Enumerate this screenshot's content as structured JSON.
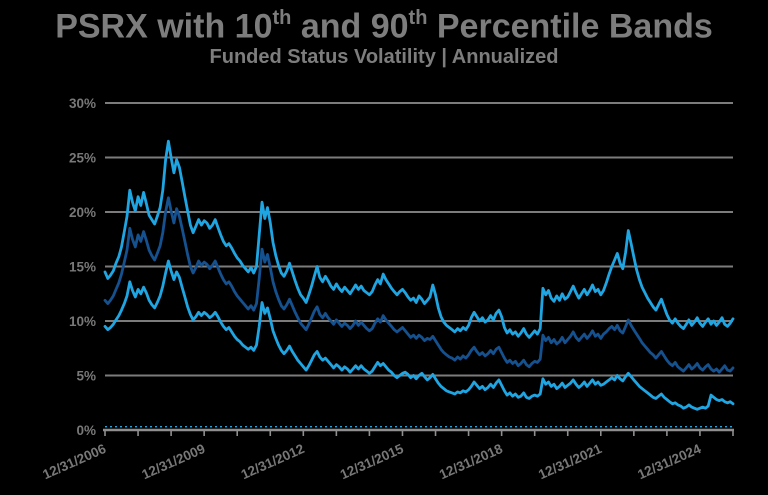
{
  "header": {
    "title_parts": {
      "p1": "PSRX with 10",
      "s1": "th",
      "p2": " and 90",
      "s2": "th",
      "p3": " Percentile Bands"
    },
    "subtitle": "Funded Status Volatility | Annualized"
  },
  "colors": {
    "background": "#000000",
    "band_line": "#1FA5E2",
    "psrx_line": "#15518F",
    "grid": "#7c7c7c",
    "axis": "#8f8f8f",
    "tick_label": "#787878",
    "title_text": "#7d7d7d"
  },
  "chart_data": {
    "type": "line",
    "title": "PSRX with 10th and 90th Percentile Bands",
    "subtitle": "Funded Status Volatility | Annualized",
    "x_start": "12/31/2006",
    "x_end": "12/31/2025",
    "x_frequency": "monthly",
    "x_tick_labels": [
      "12/31/2006",
      "12/31/2009",
      "12/31/2012",
      "12/31/2015",
      "12/31/2018",
      "12/31/2021",
      "12/31/2024"
    ],
    "x_minor_tick_every_months": 12,
    "x_label_every_months": 36,
    "ylim": [
      0,
      30
    ],
    "y_ticks_pct": [
      0,
      5,
      10,
      15,
      20,
      25,
      30
    ],
    "y_tick_suffix": "%",
    "grid": "horizontal",
    "legend": "none",
    "zero_reference_line": {
      "value_pct": 0.3,
      "style": "dashed"
    },
    "series": [
      {
        "name": "90th Percentile",
        "color": "#1FA5E2",
        "values": [
          14.5,
          13.9,
          14.2,
          14.6,
          15.3,
          15.9,
          16.8,
          18.2,
          19.6,
          22.0,
          20.9,
          20.1,
          21.4,
          20.6,
          21.8,
          20.8,
          19.7,
          19.3,
          18.9,
          19.6,
          20.4,
          22.0,
          24.8,
          26.5,
          25.0,
          23.6,
          24.8,
          24.1,
          22.8,
          21.4,
          20.1,
          18.8,
          18.1,
          18.7,
          19.3,
          18.8,
          19.2,
          19.0,
          18.5,
          18.8,
          19.3,
          18.6,
          17.9,
          17.3,
          16.9,
          17.1,
          16.7,
          16.2,
          15.8,
          15.5,
          15.1,
          14.8,
          14.5,
          14.9,
          14.4,
          15.0,
          17.9,
          20.9,
          19.4,
          20.4,
          19.0,
          17.2,
          16.0,
          15.1,
          14.4,
          14.1,
          14.6,
          15.3,
          14.5,
          13.7,
          13.0,
          12.4,
          12.1,
          11.7,
          12.4,
          13.2,
          14.1,
          15.0,
          14.0,
          13.6,
          14.1,
          13.7,
          13.2,
          12.9,
          13.4,
          13.0,
          12.7,
          13.1,
          12.8,
          12.5,
          12.9,
          13.3,
          12.9,
          13.2,
          12.8,
          12.6,
          12.4,
          12.7,
          13.3,
          13.8,
          13.4,
          14.3,
          13.8,
          13.4,
          13.0,
          12.7,
          12.4,
          12.7,
          12.9,
          12.6,
          12.2,
          11.9,
          12.1,
          11.7,
          12.3,
          12.0,
          11.6,
          11.9,
          12.2,
          13.3,
          12.4,
          11.2,
          10.4,
          9.9,
          9.6,
          9.4,
          9.2,
          9.0,
          9.3,
          9.1,
          9.4,
          9.2,
          9.6,
          10.3,
          10.8,
          10.4,
          10.0,
          10.3,
          9.9,
          10.1,
          10.5,
          10.1,
          10.7,
          11.0,
          10.4,
          9.4,
          8.9,
          9.2,
          8.8,
          9.0,
          8.6,
          8.9,
          9.3,
          8.8,
          8.5,
          8.8,
          9.1,
          8.8,
          9.3,
          13.0,
          12.4,
          12.8,
          12.1,
          11.8,
          12.3,
          11.9,
          12.5,
          12.0,
          12.2,
          12.7,
          13.2,
          12.6,
          12.1,
          12.5,
          12.9,
          12.4,
          12.8,
          13.3,
          12.7,
          12.9,
          12.4,
          12.8,
          13.5,
          14.3,
          15.0,
          15.6,
          16.2,
          15.3,
          14.8,
          16.3,
          18.3,
          17.1,
          15.9,
          14.7,
          13.8,
          13.1,
          12.6,
          12.1,
          11.7,
          11.3,
          11.0,
          11.5,
          12.0,
          11.3,
          10.6,
          10.1,
          9.8,
          10.2,
          9.8,
          9.5,
          9.3,
          9.7,
          10.1,
          9.6,
          9.9,
          10.3,
          9.8,
          9.5,
          9.9,
          10.2,
          9.7,
          10.0,
          9.6,
          9.9,
          10.3,
          9.7,
          9.5,
          9.8,
          10.2
        ]
      },
      {
        "name": "10th Percentile",
        "color": "#1FA5E2",
        "values": [
          9.5,
          9.2,
          9.4,
          9.7,
          10.1,
          10.5,
          11.0,
          11.6,
          12.3,
          13.6,
          12.8,
          12.2,
          12.9,
          12.5,
          13.1,
          12.6,
          11.9,
          11.5,
          11.2,
          11.7,
          12.3,
          13.2,
          14.4,
          15.5,
          14.6,
          13.8,
          14.5,
          14.0,
          13.1,
          12.2,
          11.3,
          10.6,
          10.1,
          10.4,
          10.8,
          10.5,
          10.8,
          10.6,
          10.3,
          10.5,
          10.8,
          10.4,
          9.9,
          9.5,
          9.2,
          9.4,
          9.0,
          8.6,
          8.3,
          8.1,
          7.8,
          7.6,
          7.4,
          7.6,
          7.3,
          7.8,
          9.5,
          11.7,
          10.7,
          11.2,
          10.2,
          9.1,
          8.4,
          7.8,
          7.3,
          7.0,
          7.3,
          7.7,
          7.2,
          6.8,
          6.4,
          6.1,
          5.8,
          5.5,
          5.9,
          6.4,
          6.9,
          7.2,
          6.7,
          6.4,
          6.6,
          6.3,
          6.0,
          5.7,
          6.0,
          5.8,
          5.5,
          5.8,
          5.6,
          5.3,
          5.6,
          5.9,
          5.6,
          5.9,
          5.6,
          5.4,
          5.2,
          5.4,
          5.8,
          6.2,
          5.9,
          6.1,
          5.8,
          5.5,
          5.3,
          5.0,
          4.8,
          5.0,
          5.2,
          5.3,
          5.1,
          4.8,
          5.0,
          4.7,
          5.0,
          5.2,
          4.9,
          4.6,
          4.8,
          5.1,
          4.7,
          4.3,
          4.0,
          3.8,
          3.6,
          3.5,
          3.4,
          3.3,
          3.5,
          3.4,
          3.6,
          3.5,
          3.7,
          4.0,
          4.4,
          4.1,
          3.8,
          4.0,
          3.7,
          3.9,
          4.2,
          3.9,
          4.3,
          4.6,
          4.1,
          3.6,
          3.2,
          3.4,
          3.1,
          3.3,
          3.0,
          3.1,
          3.4,
          3.0,
          2.9,
          3.1,
          3.2,
          3.1,
          3.3,
          4.7,
          4.2,
          4.4,
          4.0,
          4.2,
          3.8,
          4.0,
          4.3,
          3.9,
          4.1,
          4.3,
          4.6,
          4.2,
          3.9,
          4.1,
          4.4,
          4.0,
          4.3,
          4.6,
          4.2,
          4.4,
          4.1,
          4.2,
          4.4,
          4.6,
          4.8,
          4.6,
          5.0,
          4.7,
          4.5,
          4.9,
          5.2,
          4.9,
          4.6,
          4.3,
          4.0,
          3.8,
          3.6,
          3.4,
          3.2,
          3.0,
          2.9,
          3.1,
          3.3,
          3.0,
          2.8,
          2.6,
          2.4,
          2.5,
          2.3,
          2.2,
          2.0,
          2.1,
          2.3,
          2.1,
          2.0,
          1.9,
          2.0,
          2.1,
          2.0,
          2.2,
          3.2,
          3.0,
          2.8,
          2.7,
          2.8,
          2.6,
          2.5,
          2.6,
          2.4
        ]
      },
      {
        "name": "PSRX",
        "color": "#15518F",
        "values": [
          11.9,
          11.6,
          11.9,
          12.3,
          12.9,
          13.5,
          14.3,
          15.4,
          16.5,
          18.5,
          17.5,
          16.8,
          17.9,
          17.3,
          18.2,
          17.4,
          16.5,
          16.0,
          15.6,
          16.2,
          16.9,
          18.1,
          20.0,
          21.3,
          20.1,
          19.0,
          20.3,
          19.6,
          18.5,
          17.3,
          16.1,
          15.0,
          14.4,
          14.9,
          15.5,
          15.1,
          15.4,
          15.2,
          14.8,
          15.1,
          15.5,
          14.9,
          14.3,
          13.8,
          13.4,
          13.6,
          13.2,
          12.7,
          12.3,
          12.0,
          11.7,
          11.4,
          11.1,
          11.4,
          11.0,
          11.6,
          13.9,
          16.6,
          15.4,
          16.1,
          14.9,
          13.6,
          12.7,
          12.0,
          11.4,
          11.1,
          11.5,
          12.0,
          11.4,
          10.8,
          10.3,
          9.8,
          9.5,
          9.2,
          9.7,
          10.3,
          10.9,
          11.3,
          10.6,
          10.3,
          10.7,
          10.3,
          10.0,
          9.7,
          10.1,
          9.8,
          9.5,
          9.8,
          9.6,
          9.3,
          9.6,
          10.0,
          9.6,
          9.9,
          9.6,
          9.3,
          9.1,
          9.3,
          9.8,
          10.2,
          9.9,
          10.5,
          10.1,
          9.8,
          9.5,
          9.2,
          9.0,
          9.2,
          9.4,
          9.1,
          8.8,
          8.5,
          8.7,
          8.4,
          8.7,
          8.5,
          8.2,
          8.4,
          8.3,
          8.6,
          8.2,
          7.8,
          7.4,
          7.1,
          6.9,
          6.7,
          6.6,
          6.4,
          6.7,
          6.5,
          6.8,
          6.6,
          6.9,
          7.3,
          7.6,
          7.2,
          6.9,
          7.1,
          6.8,
          7.0,
          7.3,
          7.0,
          7.4,
          7.6,
          7.1,
          6.6,
          6.2,
          6.4,
          6.1,
          6.3,
          5.9,
          6.1,
          6.4,
          6.0,
          5.8,
          6.1,
          6.3,
          6.2,
          6.5,
          8.7,
          8.2,
          8.5,
          8.0,
          8.3,
          7.9,
          8.1,
          8.5,
          8.0,
          8.3,
          8.6,
          9.0,
          8.5,
          8.2,
          8.5,
          8.8,
          8.4,
          8.7,
          9.1,
          8.6,
          8.8,
          8.4,
          8.8,
          9.0,
          9.3,
          9.5,
          9.2,
          9.6,
          9.1,
          8.9,
          9.5,
          10.1,
          9.6,
          9.2,
          8.8,
          8.4,
          8.0,
          7.7,
          7.4,
          7.1,
          6.9,
          6.6,
          6.9,
          7.2,
          6.8,
          6.4,
          6.1,
          5.9,
          6.2,
          5.8,
          5.6,
          5.4,
          5.7,
          6.0,
          5.6,
          5.8,
          6.1,
          5.7,
          5.5,
          5.8,
          6.0,
          5.6,
          5.4,
          5.6,
          5.3,
          5.6,
          5.9,
          5.5,
          5.4,
          5.7
        ]
      }
    ]
  }
}
